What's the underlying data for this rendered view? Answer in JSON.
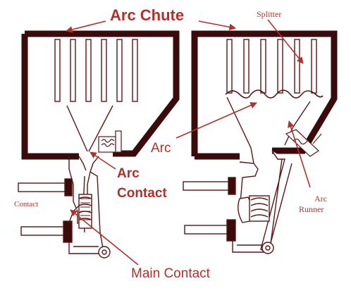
{
  "labels": {
    "arc_chute": "Arc Chute",
    "splitter": "Splitter",
    "arc": "Arc",
    "arc_contact_line1": "Arc",
    "arc_contact_line2": "Contact",
    "arc_runner_line1": "Arc",
    "arc_runner_line2": "Runner",
    "contact": "Contact",
    "main_contact": "Main Contact"
  },
  "colors": {
    "frame": "#3b0a0a",
    "outline": "#5a1414",
    "label": "#b0302c",
    "arrow": "#b0302c",
    "fill": "#ffffff",
    "grey": "#8a8a8a"
  }
}
